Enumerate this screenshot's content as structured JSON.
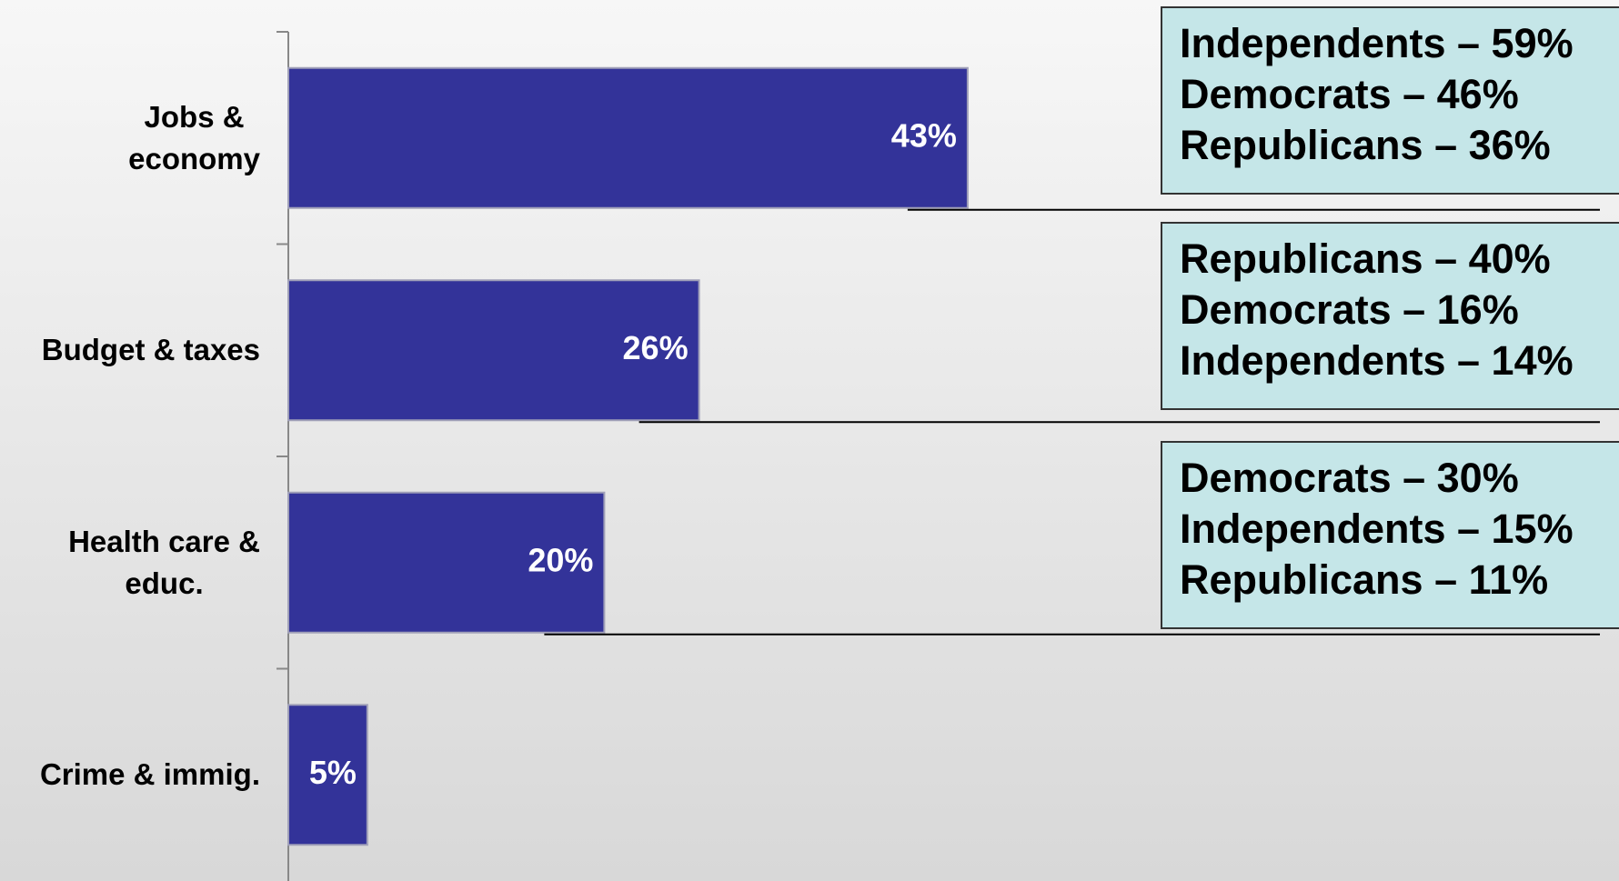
{
  "chart_data": {
    "type": "bar",
    "orientation": "horizontal",
    "categories": [
      "Jobs &\neconomy",
      "Budget & taxes",
      "Health care &\neduc.",
      "Crime & immig."
    ],
    "values": [
      43,
      26,
      20,
      5
    ],
    "value_labels": [
      "43%",
      "26%",
      "20%",
      "5%"
    ],
    "color": "#333399",
    "xlim": [
      0,
      84
    ],
    "annotations": [
      {
        "lines": [
          "Independents – 59%",
          "Democrats – 46%",
          "Republicans – 36%"
        ]
      },
      {
        "lines": [
          "Republicans – 40%",
          "Democrats – 16%",
          "Independents – 14%"
        ]
      },
      {
        "lines": [
          "Democrats – 30%",
          "Independents – 15%",
          "Republicans – 11%"
        ]
      }
    ]
  }
}
